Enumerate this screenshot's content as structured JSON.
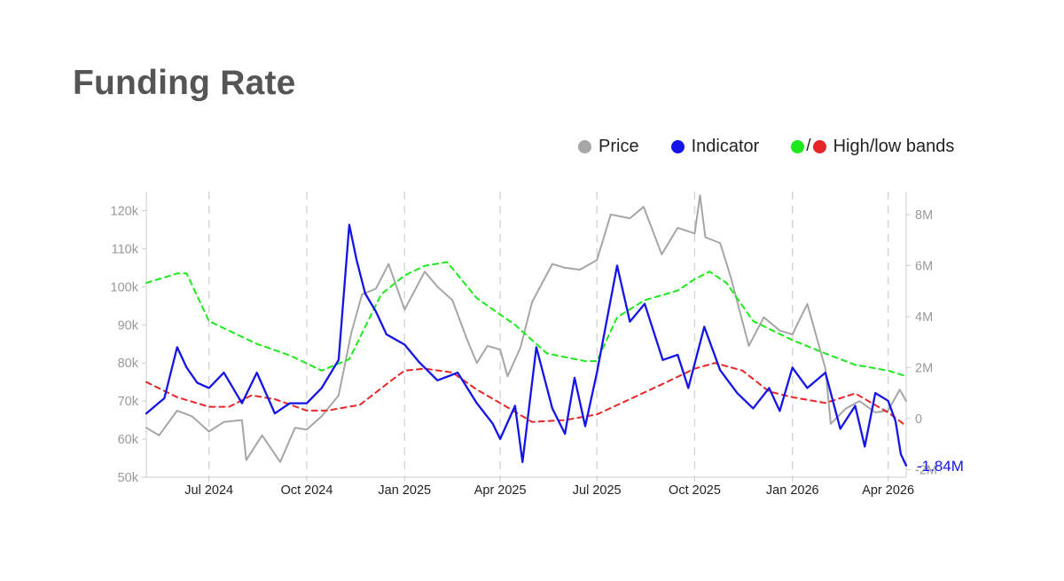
{
  "title": "Funding Rate",
  "legend": {
    "price": {
      "label": "Price",
      "color": "#a6a6a6",
      "icon": "circle-dot-icon"
    },
    "indicator": {
      "label": "Indicator",
      "color": "#1414e8",
      "icon": "circle-dot-icon"
    },
    "bands": {
      "label": "High/low bands",
      "high_color": "#1dea1d",
      "low_color": "#e62626",
      "icon": "circle-dot-icon",
      "slash": "/"
    }
  },
  "chart_data": {
    "type": "line",
    "title": "Funding Rate",
    "x_ticks": [
      "Jul 2024",
      "Oct 2024",
      "Jan 2025",
      "Apr 2025",
      "Jul 2025",
      "Oct 2025",
      "Jan 2026",
      "Apr 2026"
    ],
    "x_tick_dates": [
      "2024-07-01",
      "2024-10-01",
      "2025-01-01",
      "2025-04-01",
      "2025-07-01",
      "2025-10-01",
      "2026-01-01",
      "2026-04-01"
    ],
    "x_range": [
      "2024-05-03",
      "2026-04-18"
    ],
    "y_left": {
      "ticks": [
        50000,
        60000,
        70000,
        80000,
        90000,
        100000,
        110000,
        120000
      ],
      "tick_labels": [
        "50k",
        "60k",
        "70k",
        "80k",
        "90k",
        "100k",
        "110k",
        "120k"
      ],
      "range": [
        50000,
        125000
      ]
    },
    "y_right": {
      "ticks": [
        -2000000,
        0,
        2000000,
        4000000,
        6000000,
        8000000
      ],
      "tick_labels": [
        "-2M",
        "0",
        "2M",
        "4M",
        "6M",
        "8M"
      ],
      "range": [
        -2300000,
        8900000
      ]
    },
    "grid": {
      "vertical_dashed": true,
      "horizontal": false
    },
    "legend_position": "top-right",
    "last_value_label": "-1.84M",
    "series": [
      {
        "name": "Price",
        "axis": "left",
        "color": "#a6a6a6",
        "style": "solid",
        "x": [
          "2024-05-03",
          "2024-05-15",
          "2024-06-01",
          "2024-06-15",
          "2024-07-01",
          "2024-07-15",
          "2024-08-01",
          "2024-08-05",
          "2024-08-20",
          "2024-09-06",
          "2024-09-20",
          "2024-10-01",
          "2024-10-15",
          "2024-10-31",
          "2024-11-12",
          "2024-11-22",
          "2024-12-05",
          "2024-12-17",
          "2025-01-01",
          "2025-01-20",
          "2025-02-01",
          "2025-02-15",
          "2025-03-01",
          "2025-03-10",
          "2025-03-20",
          "2025-04-01",
          "2025-04-08",
          "2025-04-20",
          "2025-05-01",
          "2025-05-20",
          "2025-06-01",
          "2025-06-15",
          "2025-07-01",
          "2025-07-14",
          "2025-08-01",
          "2025-08-14",
          "2025-08-31",
          "2025-09-15",
          "2025-10-01",
          "2025-10-06",
          "2025-10-11",
          "2025-10-25",
          "2025-11-04",
          "2025-11-21",
          "2025-12-05",
          "2025-12-20",
          "2026-01-01",
          "2026-01-15",
          "2026-02-01",
          "2026-02-06",
          "2026-02-20",
          "2026-03-05",
          "2026-03-20",
          "2026-04-01",
          "2026-04-12",
          "2026-04-18"
        ],
        "values": [
          63000,
          61000,
          67500,
          66000,
          62000,
          64500,
          65000,
          54500,
          61000,
          54000,
          63000,
          62500,
          66000,
          71500,
          88000,
          98000,
          99500,
          106000,
          94000,
          104000,
          100000,
          96500,
          86000,
          80000,
          84500,
          83500,
          76500,
          84000,
          96000,
          106000,
          105000,
          104500,
          107000,
          119000,
          118000,
          121000,
          108500,
          115500,
          114000,
          124000,
          113000,
          111500,
          102500,
          84500,
          92000,
          88500,
          87500,
          95500,
          78500,
          64000,
          68000,
          70000,
          67000,
          67500,
          73000,
          70000
        ]
      },
      {
        "name": "Indicator",
        "axis": "right",
        "color": "#1414e8",
        "style": "solid",
        "x": [
          "2024-05-03",
          "2024-05-20",
          "2024-06-01",
          "2024-06-10",
          "2024-06-20",
          "2024-07-01",
          "2024-07-15",
          "2024-08-01",
          "2024-08-15",
          "2024-09-01",
          "2024-09-15",
          "2024-10-01",
          "2024-10-15",
          "2024-10-31",
          "2024-11-10",
          "2024-11-17",
          "2024-11-25",
          "2024-12-05",
          "2024-12-15",
          "2025-01-01",
          "2025-01-15",
          "2025-02-01",
          "2025-02-20",
          "2025-03-10",
          "2025-03-25",
          "2025-04-01",
          "2025-04-15",
          "2025-04-22",
          "2025-05-05",
          "2025-05-20",
          "2025-06-01",
          "2025-06-10",
          "2025-06-20",
          "2025-07-01",
          "2025-07-20",
          "2025-08-01",
          "2025-08-15",
          "2025-09-01",
          "2025-09-15",
          "2025-09-25",
          "2025-10-10",
          "2025-10-25",
          "2025-11-10",
          "2025-11-25",
          "2025-12-10",
          "2025-12-20",
          "2026-01-01",
          "2026-01-15",
          "2026-02-01",
          "2026-02-15",
          "2026-03-01",
          "2026-03-10",
          "2026-03-20",
          "2026-04-01",
          "2026-04-08",
          "2026-04-13",
          "2026-04-18"
        ],
        "values": [
          200000,
          800000,
          2800000,
          2000000,
          1400000,
          1200000,
          1800000,
          600000,
          1800000,
          200000,
          600000,
          600000,
          1200000,
          2300000,
          7600000,
          6200000,
          4900000,
          4200000,
          3300000,
          2900000,
          2200000,
          1500000,
          1800000,
          600000,
          -200000,
          -800000,
          500000,
          -1700000,
          2800000,
          400000,
          -600000,
          1600000,
          -300000,
          1800000,
          6000000,
          3800000,
          4500000,
          2300000,
          2500000,
          1200000,
          3600000,
          1900000,
          1000000,
          400000,
          1200000,
          300000,
          2000000,
          1200000,
          1800000,
          -400000,
          500000,
          -1100000,
          1000000,
          700000,
          -100000,
          -1400000,
          -1840000
        ]
      },
      {
        "name": "High band",
        "axis": "left",
        "color": "#1dea1d",
        "style": "dashed",
        "x": [
          "2024-05-03",
          "2024-06-01",
          "2024-06-10",
          "2024-07-01",
          "2024-08-15",
          "2024-09-15",
          "2024-10-15",
          "2024-11-10",
          "2024-12-10",
          "2025-01-01",
          "2025-01-20",
          "2025-02-10",
          "2025-03-10",
          "2025-04-15",
          "2025-05-15",
          "2025-06-20",
          "2025-07-01",
          "2025-07-20",
          "2025-08-15",
          "2025-09-15",
          "2025-10-01",
          "2025-10-15",
          "2025-10-31",
          "2025-11-25",
          "2026-01-01",
          "2026-02-01",
          "2026-03-01",
          "2026-04-01",
          "2026-04-18"
        ],
        "values": [
          101000,
          103500,
          103500,
          91000,
          85000,
          82000,
          78000,
          81000,
          98000,
          103000,
          105500,
          106500,
          97000,
          90000,
          82500,
          80500,
          80500,
          92000,
          96500,
          99000,
          102000,
          104000,
          101000,
          91000,
          86000,
          82500,
          79500,
          78000,
          76500
        ]
      },
      {
        "name": "Low band",
        "axis": "left",
        "color": "#e62626",
        "style": "dashed",
        "x": [
          "2024-05-03",
          "2024-06-01",
          "2024-07-01",
          "2024-07-20",
          "2024-08-10",
          "2024-09-01",
          "2024-10-01",
          "2024-10-20",
          "2024-11-20",
          "2024-12-20",
          "2025-01-01",
          "2025-01-20",
          "2025-02-15",
          "2025-03-10",
          "2025-04-10",
          "2025-05-01",
          "2025-06-01",
          "2025-07-01",
          "2025-08-01",
          "2025-09-01",
          "2025-10-01",
          "2025-10-20",
          "2025-11-15",
          "2025-12-10",
          "2026-01-01",
          "2026-02-01",
          "2026-03-01",
          "2026-04-01",
          "2026-04-18"
        ],
        "values": [
          75000,
          71000,
          68500,
          68500,
          71500,
          70500,
          67500,
          67500,
          69000,
          75500,
          78000,
          78500,
          77500,
          73000,
          68000,
          64500,
          65000,
          66500,
          70500,
          74500,
          78500,
          80000,
          78000,
          72500,
          71000,
          69500,
          72000,
          67000,
          63500
        ]
      }
    ]
  }
}
